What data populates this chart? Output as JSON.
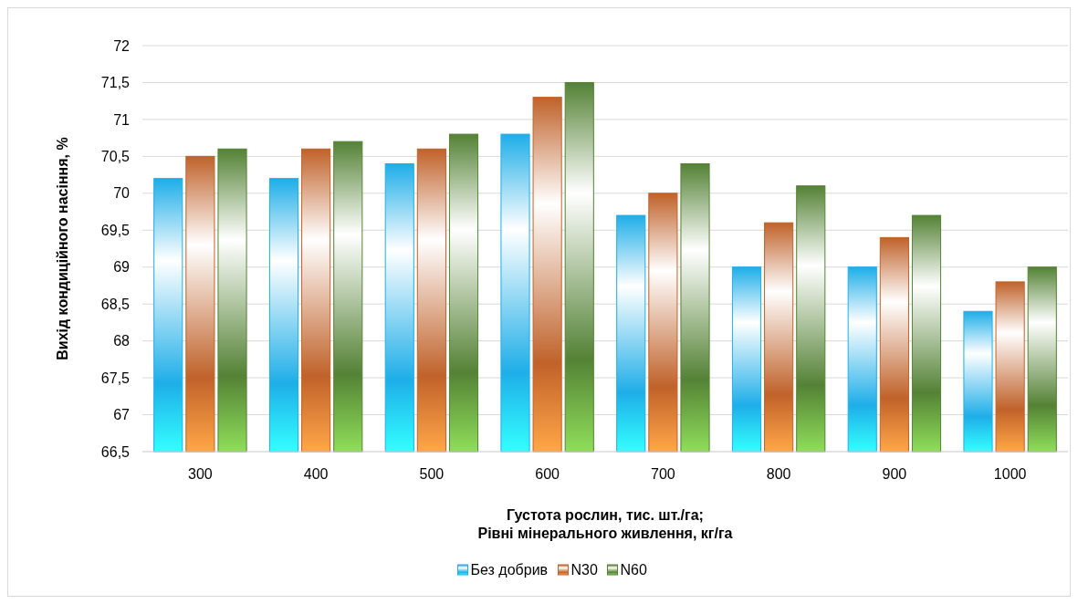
{
  "chart_data": {
    "type": "bar",
    "ylabel": "Вихід кондиційного насіння, %",
    "xlabel": "Густота рослин, тис. шт./га;\nРівні мінерального живлення, кг/га",
    "categories": [
      "300",
      "400",
      "500",
      "600",
      "700",
      "800",
      "900",
      "1000"
    ],
    "series": [
      {
        "name": "Без добрив",
        "color": "#1eaee8",
        "values": [
          70.2,
          70.2,
          70.4,
          70.8,
          69.7,
          69.0,
          69.0,
          68.4
        ]
      },
      {
        "name": "N30",
        "color": "#c0622a",
        "values": [
          70.5,
          70.6,
          70.6,
          71.3,
          70.0,
          69.6,
          69.4,
          68.8
        ]
      },
      {
        "name": "N60",
        "color": "#548235",
        "values": [
          70.6,
          70.7,
          70.8,
          71.5,
          70.4,
          70.1,
          69.7,
          69.0
        ]
      }
    ],
    "ylim": [
      66.5,
      72
    ],
    "yticks": [
      {
        "value": 66.5,
        "label": "66,5"
      },
      67,
      {
        "value": 67.5,
        "label": "67,5"
      },
      68,
      {
        "value": 68.5,
        "label": "68,5"
      },
      69,
      {
        "value": 69.5,
        "label": "69,5"
      },
      70,
      {
        "value": 70.5,
        "label": "70,5"
      },
      71,
      {
        "value": 71.5,
        "label": "71,5"
      },
      72
    ],
    "grid": "y",
    "legend": "bottom"
  }
}
